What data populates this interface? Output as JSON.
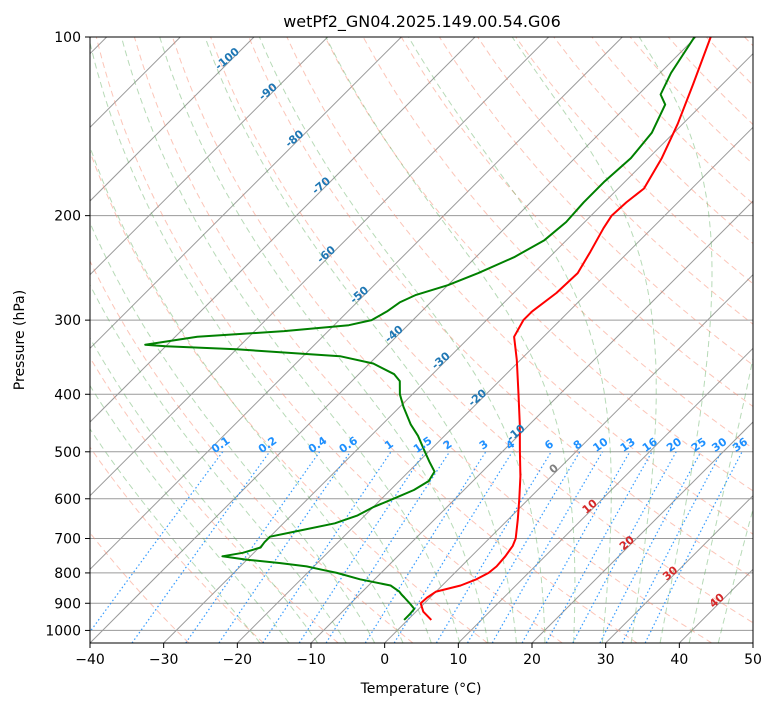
{
  "chart_data": {
    "type": "line",
    "title": "wetPf2_GN04.2025.149.00.54.G06",
    "xlabel": "Temperature (°C)",
    "ylabel": "Pressure (hPa)",
    "xlim": [
      -40,
      50
    ],
    "ylim": [
      1050,
      100
    ],
    "y_scale": "log",
    "grid": true,
    "x_ticks": [
      -40,
      -30,
      -20,
      -10,
      0,
      10,
      20,
      30,
      40,
      50
    ],
    "y_ticks": [
      100,
      200,
      300,
      400,
      500,
      600,
      700,
      800,
      900,
      1000
    ],
    "series": [
      {
        "name": "",
        "color": "#ff0000",
        "points": [
          {
            "p": 960,
            "t": 3.2
          },
          {
            "p": 930,
            "t": 1.0
          },
          {
            "p": 900,
            "t": -0.5
          },
          {
            "p": 880,
            "t": -0.4
          },
          {
            "p": 860,
            "t": 0.0
          },
          {
            "p": 840,
            "t": 2.5
          },
          {
            "p": 820,
            "t": 3.8
          },
          {
            "p": 800,
            "t": 4.6
          },
          {
            "p": 780,
            "t": 4.8
          },
          {
            "p": 750,
            "t": 4.6
          },
          {
            "p": 720,
            "t": 4.2
          },
          {
            "p": 700,
            "t": 3.6
          },
          {
            "p": 650,
            "t": 1.3
          },
          {
            "p": 600,
            "t": -1.3
          },
          {
            "p": 550,
            "t": -4.2
          },
          {
            "p": 500,
            "t": -7.6
          },
          {
            "p": 450,
            "t": -11.3
          },
          {
            "p": 400,
            "t": -15.6
          },
          {
            "p": 350,
            "t": -20.5
          },
          {
            "p": 320,
            "t": -24.0
          },
          {
            "p": 300,
            "t": -25.0
          },
          {
            "p": 290,
            "t": -25.0
          },
          {
            "p": 270,
            "t": -24.2
          },
          {
            "p": 250,
            "t": -24.0
          },
          {
            "p": 230,
            "t": -25.2
          },
          {
            "p": 210,
            "t": -26.6
          },
          {
            "p": 200,
            "t": -27.2
          },
          {
            "p": 190,
            "t": -27.0
          },
          {
            "p": 180,
            "t": -26.5
          },
          {
            "p": 160,
            "t": -28.2
          },
          {
            "p": 140,
            "t": -30.7
          },
          {
            "p": 120,
            "t": -34.0
          },
          {
            "p": 100,
            "t": -38.0
          }
        ]
      },
      {
        "name": "",
        "color": "#008000",
        "points": [
          {
            "p": 960,
            "t": -0.5
          },
          {
            "p": 940,
            "t": -0.5
          },
          {
            "p": 920,
            "t": -0.6
          },
          {
            "p": 900,
            "t": -2.0
          },
          {
            "p": 880,
            "t": -3.5
          },
          {
            "p": 870,
            "t": -4.3
          },
          {
            "p": 860,
            "t": -5.0
          },
          {
            "p": 840,
            "t": -7.0
          },
          {
            "p": 820,
            "t": -12.0
          },
          {
            "p": 800,
            "t": -16.0
          },
          {
            "p": 790,
            "t": -18.5
          },
          {
            "p": 780,
            "t": -21.0
          },
          {
            "p": 770,
            "t": -25.0
          },
          {
            "p": 760,
            "t": -30.0
          },
          {
            "p": 750,
            "t": -33.8
          },
          {
            "p": 740,
            "t": -31.5
          },
          {
            "p": 725,
            "t": -29.8
          },
          {
            "p": 710,
            "t": -30.0
          },
          {
            "p": 695,
            "t": -30.0
          },
          {
            "p": 680,
            "t": -27.0
          },
          {
            "p": 660,
            "t": -23.0
          },
          {
            "p": 640,
            "t": -21.0
          },
          {
            "p": 620,
            "t": -20.0
          },
          {
            "p": 600,
            "t": -18.4
          },
          {
            "p": 580,
            "t": -16.8
          },
          {
            "p": 560,
            "t": -16.0
          },
          {
            "p": 540,
            "t": -16.5
          },
          {
            "p": 520,
            "t": -18.5
          },
          {
            "p": 500,
            "t": -20.5
          },
          {
            "p": 470,
            "t": -23.6
          },
          {
            "p": 450,
            "t": -26.1
          },
          {
            "p": 420,
            "t": -29.5
          },
          {
            "p": 400,
            "t": -31.7
          },
          {
            "p": 380,
            "t": -33.5
          },
          {
            "p": 370,
            "t": -35.2
          },
          {
            "p": 355,
            "t": -39.5
          },
          {
            "p": 345,
            "t": -45.0
          },
          {
            "p": 336,
            "t": -60.0
          },
          {
            "p": 332,
            "t": -70.0
          },
          {
            "p": 330,
            "t": -73.0
          },
          {
            "p": 320,
            "t": -67.0
          },
          {
            "p": 313,
            "t": -56.0
          },
          {
            "p": 306,
            "t": -48.0
          },
          {
            "p": 300,
            "t": -45.6
          },
          {
            "p": 290,
            "t": -44.7
          },
          {
            "p": 280,
            "t": -44.2
          },
          {
            "p": 272,
            "t": -43.0
          },
          {
            "p": 262,
            "t": -40.0
          },
          {
            "p": 250,
            "t": -37.5
          },
          {
            "p": 235,
            "t": -34.8
          },
          {
            "p": 220,
            "t": -33.0
          },
          {
            "p": 205,
            "t": -32.5
          },
          {
            "p": 190,
            "t": -32.8
          },
          {
            "p": 175,
            "t": -32.8
          },
          {
            "p": 160,
            "t": -32.4
          },
          {
            "p": 145,
            "t": -33.0
          },
          {
            "p": 130,
            "t": -35.0
          },
          {
            "p": 125,
            "t": -37.0
          },
          {
            "p": 115,
            "t": -38.5
          },
          {
            "p": 100,
            "t": -40.2
          }
        ]
      }
    ],
    "mixing_ratio_labels": [
      "0.1",
      "0.2",
      "0.4",
      "0.6",
      "1",
      "1.5",
      "2",
      "3",
      "4",
      "6",
      "8",
      "10",
      "13",
      "16",
      "20",
      "25",
      "30",
      "36"
    ],
    "dry_adiabat_labels": [
      "-100",
      "-90",
      "-80",
      "-70",
      "-60",
      "-50",
      "-40",
      "-30",
      "-20",
      "-10"
    ],
    "moist_adiabat_labels": [
      "0",
      "10",
      "20",
      "30",
      "40"
    ],
    "colors": {
      "temperature": "#ff0000",
      "dewpoint": "#008000",
      "dry_adiabat": "#fa8b72",
      "moist_adiabat": "#5fae5f",
      "mixing_ratio": "#1e90ff",
      "dry_adiabat_label": "#1f77b4",
      "moist_adiabat_label": "#d62728",
      "isotherm": "#9a9a9a",
      "isobar": "#9a9a9a"
    }
  }
}
